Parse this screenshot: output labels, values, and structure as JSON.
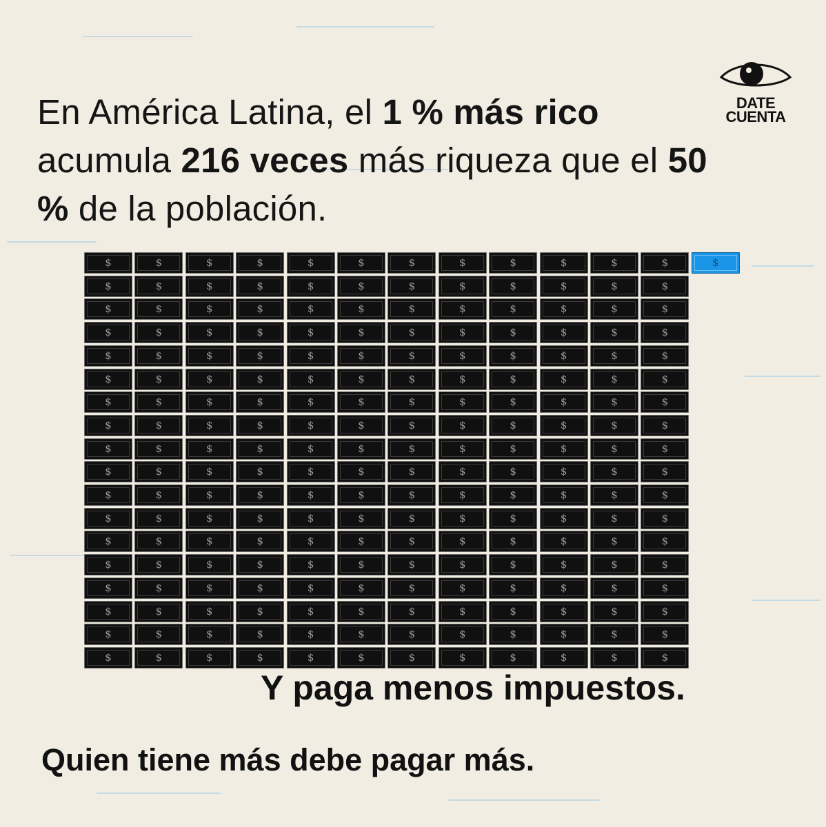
{
  "headline": {
    "part1": "En América Latina, el ",
    "bold1": "1 % más rico",
    "part2": " acumula ",
    "bold2": "216 veces",
    "part3": " más riqueza que el ",
    "bold3": "50 %",
    "part4": " de la población."
  },
  "logo": {
    "line1": "DATE",
    "line2": "CUENTA",
    "icon": "eye-icon"
  },
  "bills": {
    "dark_count": 216,
    "highlight_count": 1,
    "symbol": "$",
    "dark_color": "#101010",
    "highlight_color": "#1b95e8"
  },
  "tagline": "Y paga menos impuestos.",
  "closing": "Quien tiene más debe pagar más.",
  "colors": {
    "background": "#f1ede2",
    "text": "#111111",
    "accent": "#1b95e8"
  }
}
